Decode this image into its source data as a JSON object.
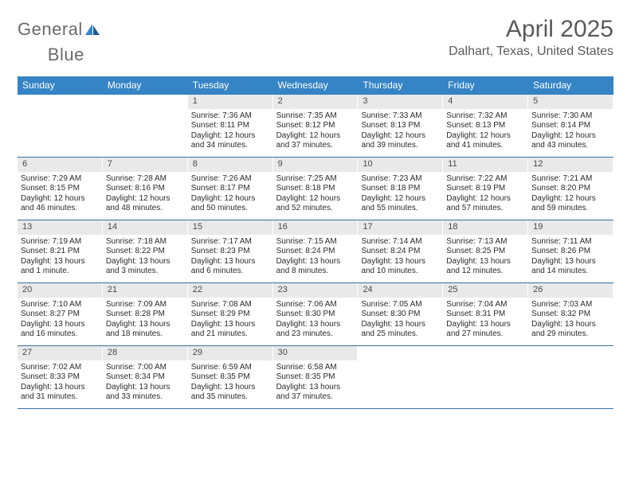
{
  "brand": {
    "part1": "General",
    "part2": "Blue"
  },
  "title": "April 2025",
  "location": "Dalhart, Texas, United States",
  "weekdays": [
    "Sunday",
    "Monday",
    "Tuesday",
    "Wednesday",
    "Thursday",
    "Friday",
    "Saturday"
  ],
  "colors": {
    "header_bar": "#3584c6",
    "day_num_bg": "#e9e9e9",
    "week_border": "#3a6fa0",
    "text": "#2b2b2b",
    "title_text": "#5a5a5a"
  },
  "weeks": [
    [
      {
        "empty": true
      },
      {
        "empty": true
      },
      {
        "num": "1",
        "sunrise": "Sunrise: 7:36 AM",
        "sunset": "Sunset: 8:11 PM",
        "daylight1": "Daylight: 12 hours",
        "daylight2": "and 34 minutes."
      },
      {
        "num": "2",
        "sunrise": "Sunrise: 7:35 AM",
        "sunset": "Sunset: 8:12 PM",
        "daylight1": "Daylight: 12 hours",
        "daylight2": "and 37 minutes."
      },
      {
        "num": "3",
        "sunrise": "Sunrise: 7:33 AM",
        "sunset": "Sunset: 8:13 PM",
        "daylight1": "Daylight: 12 hours",
        "daylight2": "and 39 minutes."
      },
      {
        "num": "4",
        "sunrise": "Sunrise: 7:32 AM",
        "sunset": "Sunset: 8:13 PM",
        "daylight1": "Daylight: 12 hours",
        "daylight2": "and 41 minutes."
      },
      {
        "num": "5",
        "sunrise": "Sunrise: 7:30 AM",
        "sunset": "Sunset: 8:14 PM",
        "daylight1": "Daylight: 12 hours",
        "daylight2": "and 43 minutes."
      }
    ],
    [
      {
        "num": "6",
        "sunrise": "Sunrise: 7:29 AM",
        "sunset": "Sunset: 8:15 PM",
        "daylight1": "Daylight: 12 hours",
        "daylight2": "and 46 minutes."
      },
      {
        "num": "7",
        "sunrise": "Sunrise: 7:28 AM",
        "sunset": "Sunset: 8:16 PM",
        "daylight1": "Daylight: 12 hours",
        "daylight2": "and 48 minutes."
      },
      {
        "num": "8",
        "sunrise": "Sunrise: 7:26 AM",
        "sunset": "Sunset: 8:17 PM",
        "daylight1": "Daylight: 12 hours",
        "daylight2": "and 50 minutes."
      },
      {
        "num": "9",
        "sunrise": "Sunrise: 7:25 AM",
        "sunset": "Sunset: 8:18 PM",
        "daylight1": "Daylight: 12 hours",
        "daylight2": "and 52 minutes."
      },
      {
        "num": "10",
        "sunrise": "Sunrise: 7:23 AM",
        "sunset": "Sunset: 8:18 PM",
        "daylight1": "Daylight: 12 hours",
        "daylight2": "and 55 minutes."
      },
      {
        "num": "11",
        "sunrise": "Sunrise: 7:22 AM",
        "sunset": "Sunset: 8:19 PM",
        "daylight1": "Daylight: 12 hours",
        "daylight2": "and 57 minutes."
      },
      {
        "num": "12",
        "sunrise": "Sunrise: 7:21 AM",
        "sunset": "Sunset: 8:20 PM",
        "daylight1": "Daylight: 12 hours",
        "daylight2": "and 59 minutes."
      }
    ],
    [
      {
        "num": "13",
        "sunrise": "Sunrise: 7:19 AM",
        "sunset": "Sunset: 8:21 PM",
        "daylight1": "Daylight: 13 hours",
        "daylight2": "and 1 minute."
      },
      {
        "num": "14",
        "sunrise": "Sunrise: 7:18 AM",
        "sunset": "Sunset: 8:22 PM",
        "daylight1": "Daylight: 13 hours",
        "daylight2": "and 3 minutes."
      },
      {
        "num": "15",
        "sunrise": "Sunrise: 7:17 AM",
        "sunset": "Sunset: 8:23 PM",
        "daylight1": "Daylight: 13 hours",
        "daylight2": "and 6 minutes."
      },
      {
        "num": "16",
        "sunrise": "Sunrise: 7:15 AM",
        "sunset": "Sunset: 8:24 PM",
        "daylight1": "Daylight: 13 hours",
        "daylight2": "and 8 minutes."
      },
      {
        "num": "17",
        "sunrise": "Sunrise: 7:14 AM",
        "sunset": "Sunset: 8:24 PM",
        "daylight1": "Daylight: 13 hours",
        "daylight2": "and 10 minutes."
      },
      {
        "num": "18",
        "sunrise": "Sunrise: 7:13 AM",
        "sunset": "Sunset: 8:25 PM",
        "daylight1": "Daylight: 13 hours",
        "daylight2": "and 12 minutes."
      },
      {
        "num": "19",
        "sunrise": "Sunrise: 7:11 AM",
        "sunset": "Sunset: 8:26 PM",
        "daylight1": "Daylight: 13 hours",
        "daylight2": "and 14 minutes."
      }
    ],
    [
      {
        "num": "20",
        "sunrise": "Sunrise: 7:10 AM",
        "sunset": "Sunset: 8:27 PM",
        "daylight1": "Daylight: 13 hours",
        "daylight2": "and 16 minutes."
      },
      {
        "num": "21",
        "sunrise": "Sunrise: 7:09 AM",
        "sunset": "Sunset: 8:28 PM",
        "daylight1": "Daylight: 13 hours",
        "daylight2": "and 18 minutes."
      },
      {
        "num": "22",
        "sunrise": "Sunrise: 7:08 AM",
        "sunset": "Sunset: 8:29 PM",
        "daylight1": "Daylight: 13 hours",
        "daylight2": "and 21 minutes."
      },
      {
        "num": "23",
        "sunrise": "Sunrise: 7:06 AM",
        "sunset": "Sunset: 8:30 PM",
        "daylight1": "Daylight: 13 hours",
        "daylight2": "and 23 minutes."
      },
      {
        "num": "24",
        "sunrise": "Sunrise: 7:05 AM",
        "sunset": "Sunset: 8:30 PM",
        "daylight1": "Daylight: 13 hours",
        "daylight2": "and 25 minutes."
      },
      {
        "num": "25",
        "sunrise": "Sunrise: 7:04 AM",
        "sunset": "Sunset: 8:31 PM",
        "daylight1": "Daylight: 13 hours",
        "daylight2": "and 27 minutes."
      },
      {
        "num": "26",
        "sunrise": "Sunrise: 7:03 AM",
        "sunset": "Sunset: 8:32 PM",
        "daylight1": "Daylight: 13 hours",
        "daylight2": "and 29 minutes."
      }
    ],
    [
      {
        "num": "27",
        "sunrise": "Sunrise: 7:02 AM",
        "sunset": "Sunset: 8:33 PM",
        "daylight1": "Daylight: 13 hours",
        "daylight2": "and 31 minutes."
      },
      {
        "num": "28",
        "sunrise": "Sunrise: 7:00 AM",
        "sunset": "Sunset: 8:34 PM",
        "daylight1": "Daylight: 13 hours",
        "daylight2": "and 33 minutes."
      },
      {
        "num": "29",
        "sunrise": "Sunrise: 6:59 AM",
        "sunset": "Sunset: 8:35 PM",
        "daylight1": "Daylight: 13 hours",
        "daylight2": "and 35 minutes."
      },
      {
        "num": "30",
        "sunrise": "Sunrise: 6:58 AM",
        "sunset": "Sunset: 8:35 PM",
        "daylight1": "Daylight: 13 hours",
        "daylight2": "and 37 minutes."
      },
      {
        "empty": true
      },
      {
        "empty": true
      },
      {
        "empty": true
      }
    ]
  ]
}
